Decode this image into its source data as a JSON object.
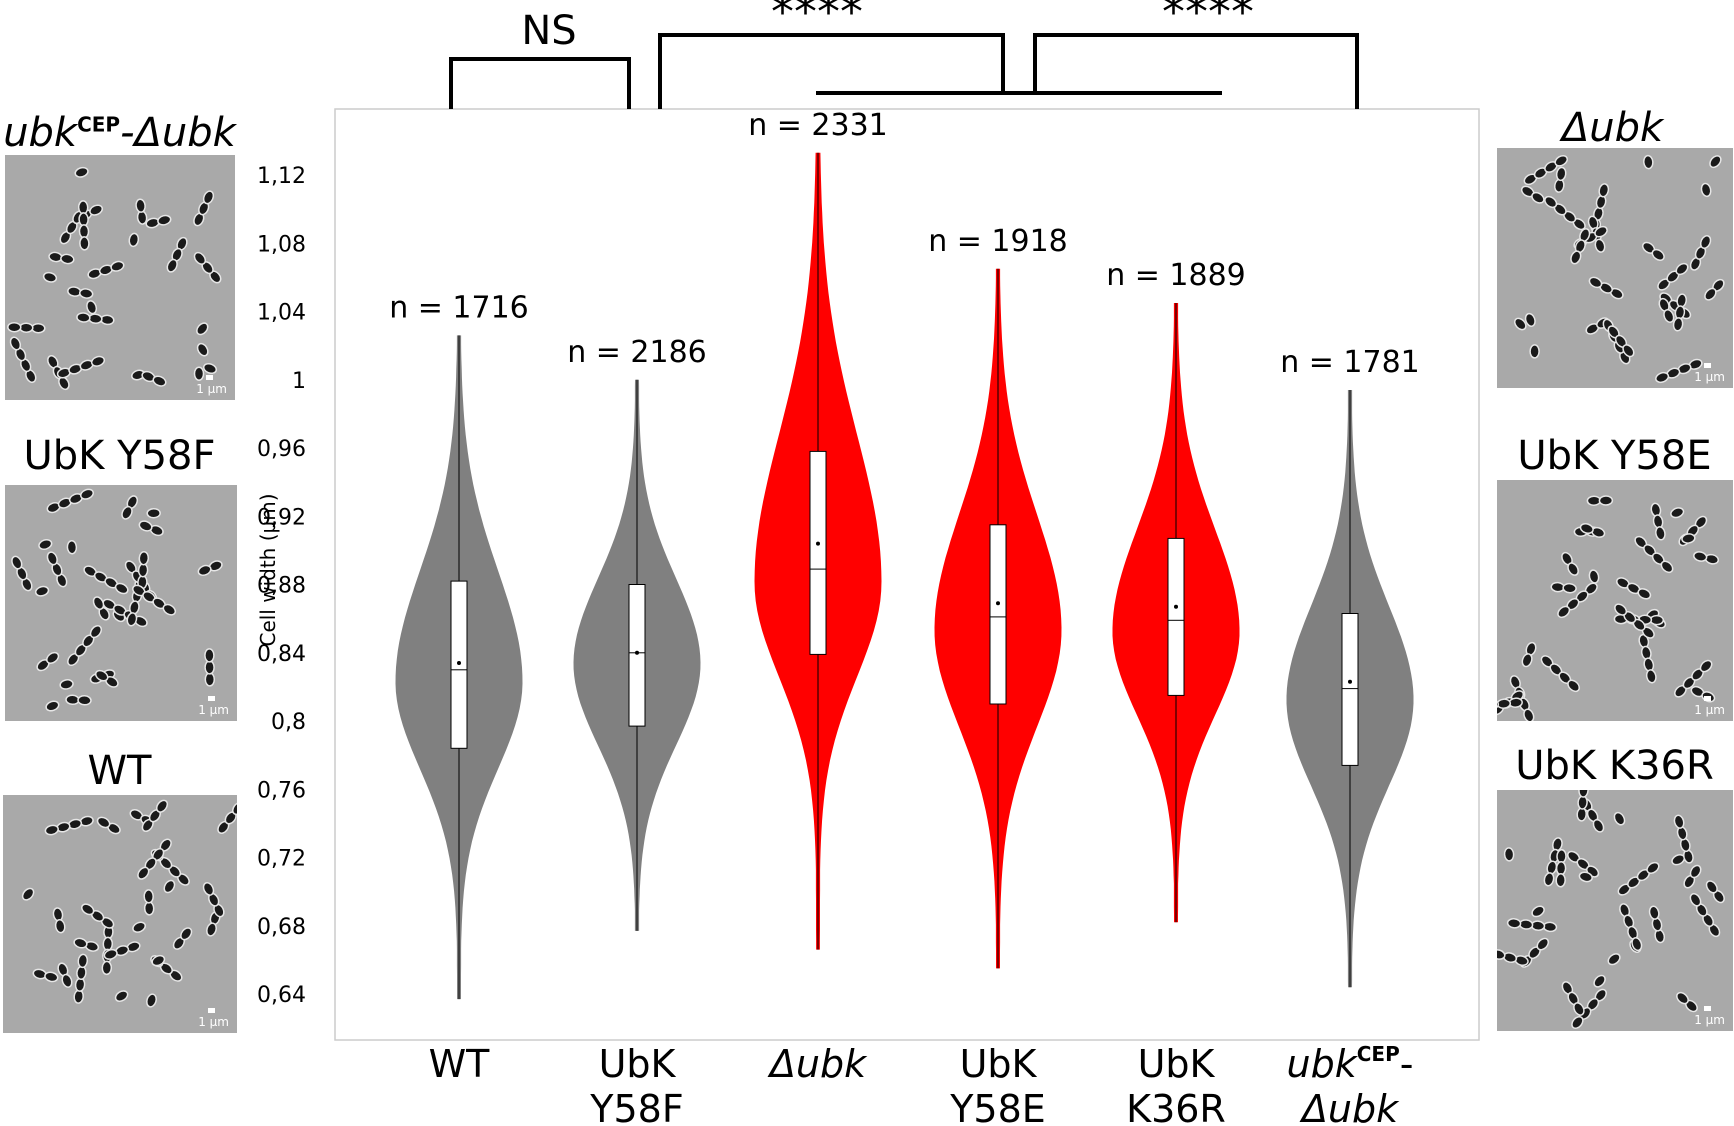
{
  "panels": {
    "left": [
      {
        "title_main": "ubk",
        "title_sup": "CEP",
        "title_tail": "-Δubk",
        "scale": "1 µm"
      },
      {
        "title": "UbK Y58F",
        "scale": "1 µm"
      },
      {
        "title": "WT",
        "scale": "1 µm"
      }
    ],
    "right": [
      {
        "title": "Δubk",
        "scale": "1 µm"
      },
      {
        "title": "UbK Y58E",
        "scale": "1 µm"
      },
      {
        "title": "UbK K36R",
        "scale": "1 µm"
      }
    ]
  },
  "significance": [
    {
      "label": "NS"
    },
    {
      "label": "****"
    },
    {
      "label": "****"
    }
  ],
  "chart_data": {
    "type": "violin",
    "ylabel": "Cell width (µm)",
    "ylim": [
      0.62,
      1.14
    ],
    "yticks": [
      "0,64",
      "0,68",
      "0,72",
      "0,76",
      "0,8",
      "0,84",
      "0,88",
      "0,92",
      "0,96",
      "1",
      "1,04",
      "1,08",
      "1,12"
    ],
    "ytick_values": [
      0.64,
      0.68,
      0.72,
      0.76,
      0.8,
      0.84,
      0.88,
      0.92,
      0.96,
      1.0,
      1.04,
      1.08,
      1.12
    ],
    "colors": {
      "gray": "#808080",
      "red": "#ff0000"
    },
    "groups": [
      {
        "label_line1": "WT",
        "label_line2": "",
        "n_label": "n = 1716",
        "color": "gray",
        "min": 0.637,
        "max": 1.026,
        "q1": 0.784,
        "median": 0.83,
        "q3": 0.882,
        "mean": 0.834
      },
      {
        "label_line1": "UbK",
        "label_line2": "Y58F",
        "n_label": "n = 2186",
        "color": "gray",
        "min": 0.677,
        "max": 1.0,
        "q1": 0.797,
        "median": 0.84,
        "q3": 0.88,
        "mean": 0.84
      },
      {
        "label_line1": "Δubk",
        "label_line2": "",
        "n_label": "n = 2331",
        "color": "red",
        "min": 0.666,
        "max": 1.133,
        "q1": 0.839,
        "median": 0.889,
        "q3": 0.958,
        "mean": 0.904
      },
      {
        "label_line1": "UbK",
        "label_line2": "Y58E",
        "n_label": "n = 1918",
        "color": "red",
        "min": 0.655,
        "max": 1.065,
        "q1": 0.81,
        "median": 0.861,
        "q3": 0.915,
        "mean": 0.869
      },
      {
        "label_line1": "UbK",
        "label_line2": "K36R",
        "n_label": "n = 1889",
        "color": "red",
        "min": 0.682,
        "max": 1.045,
        "q1": 0.815,
        "median": 0.859,
        "q3": 0.907,
        "mean": 0.867
      },
      {
        "label_line1": "ubk",
        "label_sup": "CEP",
        "label_tail": "-",
        "label_line2": "Δubk",
        "n_label": "n = 1781",
        "color": "gray",
        "min": 0.644,
        "max": 0.994,
        "q1": 0.774,
        "median": 0.819,
        "q3": 0.863,
        "mean": 0.823
      }
    ]
  }
}
